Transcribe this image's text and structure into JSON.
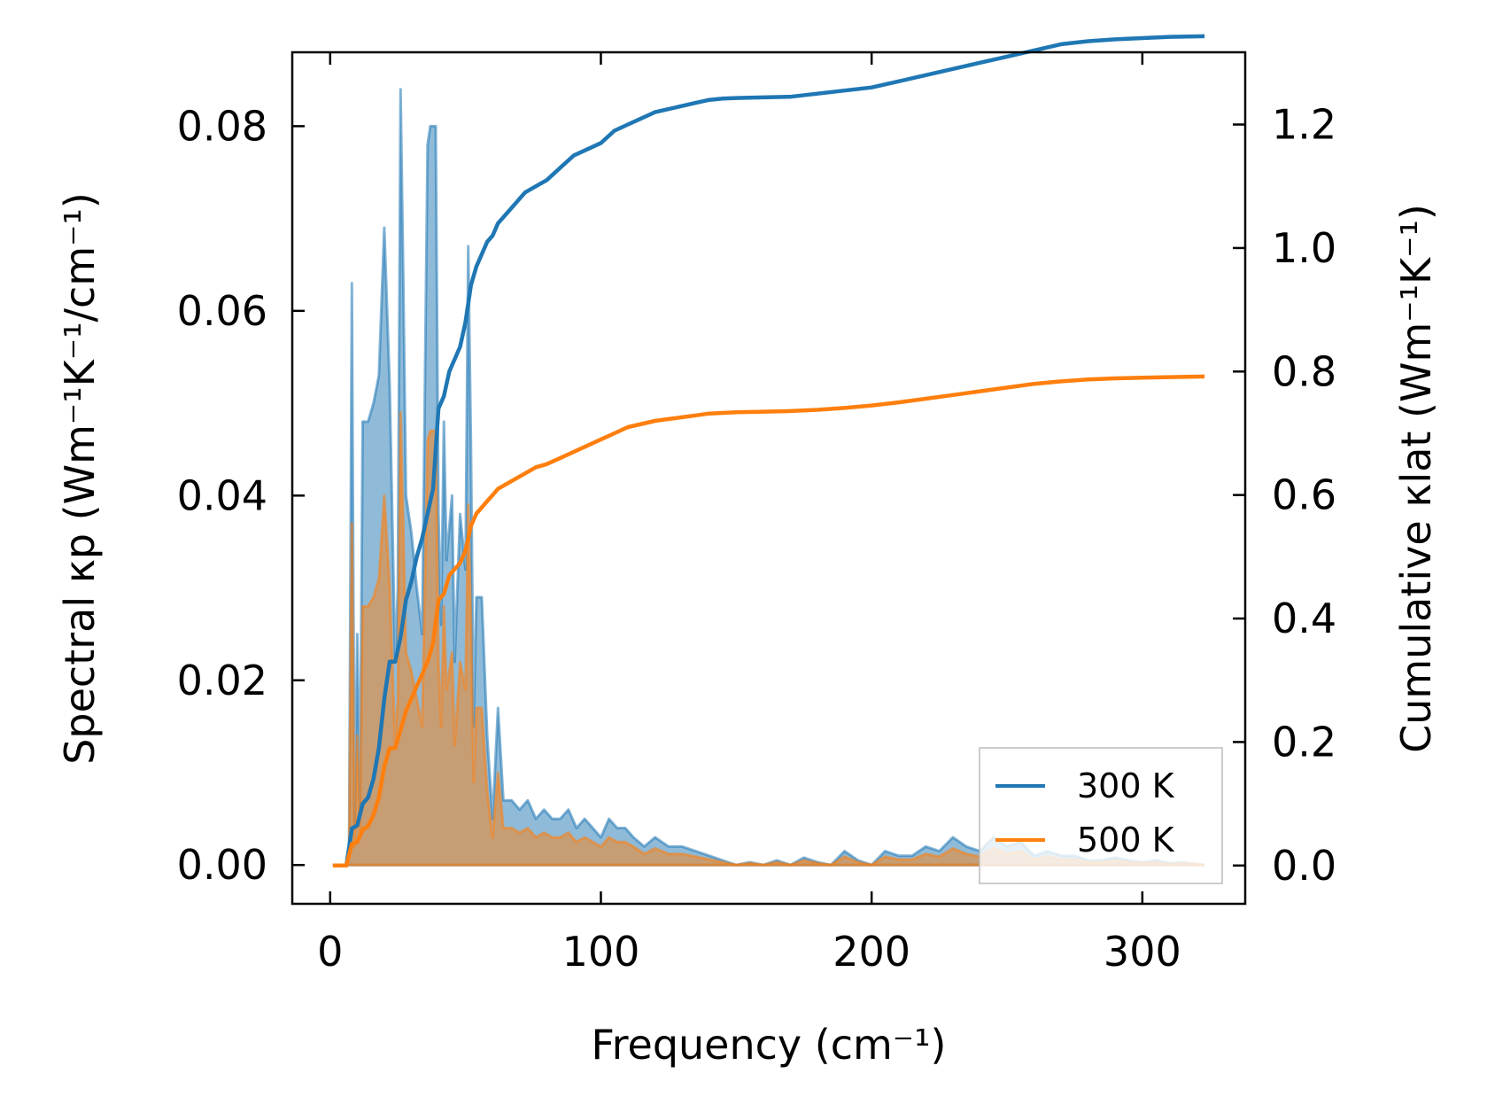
{
  "chart_data": {
    "type": "area+line",
    "xlabel": "Frequency (cm⁻¹)",
    "ylabel_left": "Spectral κp (Wm⁻¹K⁻¹/cm⁻¹)",
    "ylabel_right": "Cumulative κlat (Wm⁻¹K⁻¹)",
    "xlim": [
      -14,
      338
    ],
    "ylim_left": [
      -0.0042,
      0.088
    ],
    "ylim_right": [
      -0.062,
      1.317
    ],
    "xticks": [
      "0",
      "100",
      "200",
      "300"
    ],
    "xtick_values": [
      0,
      100,
      200,
      300
    ],
    "yticks_left": [
      "0.00",
      "0.02",
      "0.04",
      "0.06",
      "0.08"
    ],
    "ytick_values_left": [
      0,
      0.02,
      0.04,
      0.06,
      0.08
    ],
    "yticks_right": [
      "0.0",
      "0.2",
      "0.4",
      "0.6",
      "0.8",
      "1.0",
      "1.2"
    ],
    "ytick_values_right": [
      0,
      0.2,
      0.4,
      0.6,
      0.8,
      1.0,
      1.2
    ],
    "legend": {
      "location": "lower-right",
      "entries": [
        "300 K",
        "500 K"
      ]
    },
    "colors": {
      "300K": "#1f77b4",
      "500K": "#ff7f0e"
    },
    "series": [
      {
        "name": "300 K",
        "kind": "spectral",
        "color": "#1f77b4",
        "x": [
          1,
          6,
          7,
          8,
          9,
          10,
          11,
          12,
          13,
          14,
          16,
          18,
          20,
          22,
          24,
          25,
          26,
          27,
          28,
          30,
          32,
          34,
          36,
          37,
          39,
          40,
          41,
          42,
          43,
          45,
          46,
          48,
          50,
          51,
          52,
          53,
          54,
          56,
          58,
          60,
          62,
          64,
          67,
          70,
          73,
          76,
          79,
          82,
          85,
          88,
          91,
          94,
          97,
          100,
          103,
          106,
          109,
          112,
          116,
          120,
          125,
          130,
          135,
          140,
          145,
          150,
          155,
          160,
          165,
          170,
          175,
          180,
          185,
          190,
          195,
          200,
          205,
          210,
          215,
          220,
          225,
          230,
          235,
          240,
          245,
          250,
          255,
          260,
          265,
          270,
          275,
          280,
          285,
          290,
          295,
          300,
          305,
          310,
          315,
          320,
          323
        ],
        "y": [
          0,
          0,
          0.002,
          0.063,
          0.004,
          0.025,
          0.006,
          0.048,
          0.048,
          0.048,
          0.05,
          0.053,
          0.069,
          0.052,
          0.022,
          0.03,
          0.084,
          0.064,
          0.04,
          0.036,
          0.03,
          0.025,
          0.078,
          0.08,
          0.08,
          0.038,
          0.026,
          0.048,
          0.033,
          0.04,
          0.022,
          0.038,
          0.032,
          0.067,
          0.045,
          0.015,
          0.029,
          0.029,
          0.014,
          0.005,
          0.017,
          0.007,
          0.007,
          0.006,
          0.007,
          0.005,
          0.006,
          0.005,
          0.005,
          0.006,
          0.004,
          0.005,
          0.004,
          0.003,
          0.005,
          0.004,
          0.004,
          0.003,
          0.002,
          0.003,
          0.002,
          0.002,
          0.0015,
          0.001,
          0.0005,
          0,
          0.0003,
          0,
          0.0005,
          0,
          0.0008,
          0.0003,
          0,
          0.0015,
          0.0005,
          0,
          0.0015,
          0.001,
          0.001,
          0.002,
          0.0015,
          0.003,
          0.002,
          0.0015,
          0.003,
          0.002,
          0.0025,
          0.001,
          0.0015,
          0.001,
          0.001,
          0.0005,
          0.0005,
          0.0008,
          0.0005,
          0.0003,
          0.0005,
          0.0002,
          0.0003,
          0.0001,
          0
        ]
      },
      {
        "name": "500 K",
        "kind": "spectral",
        "color": "#ff7f0e",
        "x": [
          1,
          6,
          7,
          8,
          9,
          10,
          11,
          12,
          13,
          14,
          16,
          18,
          20,
          22,
          24,
          25,
          26,
          27,
          28,
          30,
          32,
          34,
          36,
          37,
          39,
          40,
          41,
          42,
          43,
          45,
          46,
          48,
          50,
          51,
          52,
          53,
          54,
          56,
          58,
          60,
          62,
          64,
          67,
          70,
          73,
          76,
          79,
          82,
          85,
          88,
          91,
          94,
          97,
          100,
          103,
          106,
          109,
          112,
          116,
          120,
          125,
          130,
          135,
          140,
          145,
          150,
          155,
          160,
          165,
          170,
          175,
          180,
          185,
          190,
          195,
          200,
          205,
          210,
          215,
          220,
          225,
          230,
          235,
          240,
          245,
          250,
          255,
          260,
          265,
          270,
          275,
          280,
          285,
          290,
          295,
          300,
          305,
          310,
          315,
          320,
          323
        ],
        "y": [
          0,
          0,
          0.001,
          0.037,
          0.002,
          0.014,
          0.003,
          0.028,
          0.028,
          0.028,
          0.029,
          0.031,
          0.04,
          0.03,
          0.013,
          0.018,
          0.049,
          0.037,
          0.023,
          0.021,
          0.018,
          0.015,
          0.046,
          0.047,
          0.047,
          0.022,
          0.015,
          0.028,
          0.019,
          0.023,
          0.013,
          0.022,
          0.019,
          0.039,
          0.026,
          0.009,
          0.017,
          0.017,
          0.008,
          0.003,
          0.01,
          0.004,
          0.004,
          0.0035,
          0.004,
          0.003,
          0.0035,
          0.003,
          0.003,
          0.0035,
          0.0025,
          0.003,
          0.0025,
          0.002,
          0.003,
          0.0025,
          0.0025,
          0.002,
          0.0012,
          0.0018,
          0.0012,
          0.0012,
          0.0009,
          0.0006,
          0.0003,
          0,
          0.0002,
          0,
          0.0003,
          0,
          0.0005,
          0.0002,
          0,
          0.0009,
          0.0003,
          0,
          0.0009,
          0.0006,
          0.0006,
          0.0012,
          0.0009,
          0.0018,
          0.0012,
          0.0009,
          0.0018,
          0.0012,
          0.0015,
          0.0006,
          0.0009,
          0.0006,
          0.0006,
          0.0003,
          0.0003,
          0.0005,
          0.0003,
          0.0002,
          0.0003,
          0.0001,
          0.0002,
          0.0001,
          0
        ]
      },
      {
        "name": "300 K",
        "kind": "cumulative",
        "color": "#1f77b4",
        "x": [
          1,
          6,
          8,
          10,
          12,
          14,
          16,
          18,
          20,
          22,
          24,
          26,
          28,
          30,
          32,
          34,
          36,
          38,
          40,
          42,
          44,
          46,
          48,
          50,
          52,
          54,
          56,
          58,
          60,
          62,
          64,
          68,
          72,
          76,
          80,
          85,
          90,
          95,
          100,
          105,
          110,
          115,
          120,
          125,
          130,
          135,
          140,
          145,
          150,
          160,
          170,
          180,
          190,
          200,
          210,
          220,
          230,
          240,
          250,
          260,
          270,
          280,
          290,
          300,
          310,
          323
        ],
        "y": [
          0,
          0,
          0.06,
          0.065,
          0.1,
          0.11,
          0.14,
          0.19,
          0.27,
          0.33,
          0.33,
          0.37,
          0.43,
          0.46,
          0.5,
          0.53,
          0.57,
          0.61,
          0.74,
          0.76,
          0.8,
          0.82,
          0.84,
          0.88,
          0.94,
          0.97,
          0.99,
          1.01,
          1.02,
          1.04,
          1.05,
          1.07,
          1.09,
          1.1,
          1.11,
          1.13,
          1.15,
          1.16,
          1.17,
          1.19,
          1.2,
          1.21,
          1.22,
          1.225,
          1.23,
          1.235,
          1.24,
          1.242,
          1.243,
          1.244,
          1.245,
          1.25,
          1.255,
          1.26,
          1.27,
          1.28,
          1.29,
          1.3,
          1.31,
          1.32,
          1.33,
          1.335,
          1.338,
          1.34,
          1.342,
          1.343
        ]
      },
      {
        "name": "500 K",
        "kind": "cumulative",
        "color": "#ff7f0e",
        "x": [
          1,
          6,
          8,
          10,
          12,
          14,
          16,
          18,
          20,
          22,
          24,
          26,
          28,
          30,
          32,
          34,
          36,
          38,
          40,
          42,
          44,
          46,
          48,
          50,
          52,
          54,
          56,
          58,
          60,
          62,
          64,
          68,
          72,
          76,
          80,
          85,
          90,
          95,
          100,
          105,
          110,
          115,
          120,
          125,
          130,
          135,
          140,
          145,
          150,
          160,
          170,
          180,
          190,
          200,
          210,
          220,
          230,
          240,
          250,
          260,
          270,
          280,
          290,
          300,
          310,
          323
        ],
        "y": [
          0,
          0,
          0.035,
          0.038,
          0.058,
          0.064,
          0.082,
          0.11,
          0.16,
          0.19,
          0.19,
          0.22,
          0.25,
          0.27,
          0.29,
          0.31,
          0.33,
          0.36,
          0.43,
          0.44,
          0.47,
          0.48,
          0.49,
          0.51,
          0.55,
          0.57,
          0.58,
          0.59,
          0.6,
          0.61,
          0.615,
          0.625,
          0.635,
          0.645,
          0.65,
          0.66,
          0.67,
          0.68,
          0.69,
          0.7,
          0.71,
          0.715,
          0.72,
          0.723,
          0.726,
          0.729,
          0.732,
          0.733,
          0.734,
          0.735,
          0.736,
          0.738,
          0.741,
          0.745,
          0.75,
          0.756,
          0.762,
          0.768,
          0.774,
          0.78,
          0.784,
          0.787,
          0.789,
          0.79,
          0.791,
          0.792
        ]
      }
    ]
  }
}
